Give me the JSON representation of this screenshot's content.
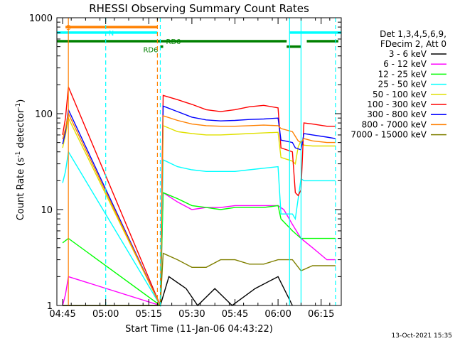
{
  "chart_data": {
    "type": "line",
    "title": "RHESSI Observing Summary Count Rates",
    "xlabel": "Start Time (11-Jan-06 04:43:22)",
    "ylabel": "Count Rate (s⁻¹ detector⁻¹)",
    "ylabel_parts": {
      "main": "Count Rate (s",
      "exp1": "-1",
      "mid": " detector",
      "exp2": "-1",
      "end": ")"
    },
    "y_scale": "log",
    "ylim": [
      1,
      1000
    ],
    "xlim": [
      "04:43",
      "06:22"
    ],
    "x_ticks": [
      "04:45",
      "05:00",
      "05:15",
      "05:30",
      "05:45",
      "06:00",
      "06:15"
    ],
    "y_ticks": [
      "1",
      "10",
      "100",
      "1000"
    ],
    "legend_header": [
      "Det 1,3,4,5,6,9,",
      "FDecim 2, Att 0"
    ],
    "legend_position": "right",
    "timestamp": "13-Oct-2021 15:35",
    "series": [
      {
        "name": "3 - 6 keV",
        "color": "#000000",
        "x": [
          "04:45",
          "04:47",
          "05:19",
          "05:22",
          "05:28",
          "05:32",
          "05:38",
          "05:44",
          "05:52",
          "06:00",
          "06:05"
        ],
        "y": [
          1,
          1,
          1,
          2,
          1.5,
          1,
          1.5,
          1,
          1.5,
          2,
          1
        ]
      },
      {
        "name": "6 - 12 keV",
        "color": "#ff00ff",
        "x": [
          "04:45",
          "04:46",
          "04:47",
          "05:19",
          "05:20",
          "05:25",
          "05:30",
          "05:35",
          "05:40",
          "05:45",
          "05:50",
          "05:55",
          "06:00",
          "06:02",
          "06:05",
          "06:08",
          "06:12",
          "06:17",
          "06:20"
        ],
        "y": [
          1,
          1.3,
          2,
          1,
          15,
          12,
          10,
          10.5,
          10.5,
          11,
          11,
          11,
          11,
          10,
          7,
          5,
          4,
          3,
          3
        ]
      },
      {
        "name": "12 - 25 keV",
        "color": "#00ff00",
        "x": [
          "04:45",
          "04:47",
          "05:19",
          "05:20",
          "05:25",
          "05:30",
          "05:35",
          "05:40",
          "05:45",
          "05:50",
          "05:55",
          "06:00",
          "06:01",
          "06:05",
          "06:08",
          "06:12",
          "06:17",
          "06:20"
        ],
        "y": [
          4.5,
          5,
          1,
          15,
          13,
          11,
          10.5,
          10,
          10.5,
          10.5,
          10.5,
          11,
          8,
          6,
          5,
          5,
          5,
          5
        ]
      },
      {
        "name": "25 - 50 keV",
        "color": "#00ffff",
        "x": [
          "04:45",
          "04:46",
          "04:47",
          "05:19",
          "05:20",
          "05:25",
          "05:30",
          "05:35",
          "05:40",
          "05:45",
          "05:50",
          "05:55",
          "06:00",
          "06:01",
          "06:05",
          "06:06",
          "06:07",
          "06:08",
          "06:09",
          "06:12",
          "06:17",
          "06:20"
        ],
        "y": [
          19,
          25,
          40,
          1,
          33,
          28,
          26,
          25,
          25,
          25,
          26,
          27,
          28,
          9,
          9,
          8,
          13,
          21,
          20,
          20,
          20,
          20
        ]
      },
      {
        "name": "50 - 100 keV",
        "color": "#e0e000",
        "x": [
          "04:45",
          "04:46",
          "04:47",
          "05:19",
          "05:20",
          "05:25",
          "05:30",
          "05:35",
          "05:40",
          "05:45",
          "05:50",
          "05:55",
          "06:00",
          "06:01",
          "06:05",
          "06:06",
          "06:07",
          "06:08",
          "06:09",
          "06:12",
          "06:17",
          "06:20"
        ],
        "y": [
          44,
          60,
          90,
          1,
          75,
          65,
          62,
          60,
          60,
          61,
          62,
          63,
          64,
          35,
          32,
          30,
          45,
          52,
          47,
          46,
          46,
          46
        ]
      },
      {
        "name": "100 - 300 keV",
        "color": "#ff0000",
        "x": [
          "04:45",
          "04:46",
          "04:47",
          "05:19",
          "05:20",
          "05:25",
          "05:30",
          "05:35",
          "05:40",
          "05:45",
          "05:50",
          "05:55",
          "06:00",
          "06:01",
          "06:02",
          "06:04",
          "06:05",
          "06:06",
          "06:07",
          "06:08",
          "06:09",
          "06:12",
          "06:17",
          "06:20"
        ],
        "y": [
          60,
          90,
          190,
          1,
          155,
          140,
          125,
          110,
          105,
          110,
          118,
          122,
          115,
          44,
          43,
          41,
          40,
          15,
          14,
          16,
          80,
          78,
          74,
          74
        ]
      },
      {
        "name": "300 - 800 keV",
        "color": "#0000ff",
        "x": [
          "04:45",
          "04:46",
          "04:47",
          "05:19",
          "05:20",
          "05:25",
          "05:30",
          "05:35",
          "05:40",
          "05:45",
          "05:50",
          "05:55",
          "06:00",
          "06:01",
          "06:05",
          "06:06",
          "06:07",
          "06:08",
          "06:09",
          "06:12",
          "06:17",
          "06:20"
        ],
        "y": [
          48,
          65,
          110,
          1,
          120,
          105,
          92,
          86,
          84,
          85,
          87,
          88,
          90,
          53,
          50,
          44,
          43,
          42,
          62,
          60,
          57,
          55
        ]
      },
      {
        "name": "800 - 7000 keV",
        "color": "#ff8000",
        "x": [
          "04:45",
          "04:46",
          "04:47",
          "05:19",
          "05:20",
          "05:25",
          "05:30",
          "05:35",
          "05:40",
          "05:45",
          "05:50",
          "05:55",
          "06:00",
          "06:01",
          "06:05",
          "06:06",
          "06:07",
          "06:08",
          "06:09",
          "06:12",
          "06:17",
          "06:20"
        ],
        "y": [
          54,
          70,
          100,
          1,
          95,
          85,
          78,
          75,
          74,
          74,
          75,
          76,
          75,
          70,
          65,
          58,
          52,
          50,
          55,
          52,
          50,
          50
        ]
      },
      {
        "name": "7000 - 15000 keV",
        "color": "#808000",
        "x": [
          "04:45",
          "04:47",
          "05:19",
          "05:20",
          "05:25",
          "05:30",
          "05:35",
          "05:40",
          "05:45",
          "05:50",
          "05:55",
          "06:00",
          "06:05",
          "06:08",
          "06:12",
          "06:17",
          "06:20"
        ],
        "y": [
          1,
          1,
          1,
          3.5,
          3,
          2.5,
          2.5,
          3,
          3,
          2.7,
          2.7,
          3,
          3,
          2.3,
          2.6,
          2.6,
          2.6
        ]
      }
    ],
    "overlay_bars": [
      {
        "label": "S",
        "color": "#ff8000",
        "start": "04:46",
        "end": "05:18",
        "level": 800
      },
      {
        "label": "N",
        "color": "#00ffff",
        "start": "04:43",
        "end": "05:18",
        "level": 700
      },
      {
        "label": "",
        "color": "#00ffff",
        "start": "06:04",
        "end": "06:22",
        "level": 700
      },
      {
        "label": "RD0",
        "color": "#008000",
        "start": "04:43",
        "end": "06:03",
        "level": 570
      },
      {
        "label": "",
        "color": "#008000",
        "start": "06:10",
        "end": "06:21",
        "level": 570
      },
      {
        "label": "RD6",
        "color": "#008000",
        "start": "05:19",
        "end": "05:20",
        "level": 500
      },
      {
        "label": "",
        "color": "#008000",
        "start": "06:03",
        "end": "06:08",
        "level": 500
      }
    ],
    "vertical_markers": [
      {
        "time": "04:47",
        "color": "#ff8000",
        "style": "solid"
      },
      {
        "time": "05:00",
        "color": "#00ffff",
        "style": "dashed"
      },
      {
        "time": "05:18",
        "color": "#ff8000",
        "style": "dashed"
      },
      {
        "time": "05:19",
        "color": "#00ffff",
        "style": "dashed"
      },
      {
        "time": "06:04",
        "color": "#00ffff",
        "style": "solid"
      },
      {
        "time": "06:08",
        "color": "#00ffff",
        "style": "solid"
      },
      {
        "time": "06:20",
        "color": "#00ffff",
        "style": "dashed"
      }
    ]
  }
}
